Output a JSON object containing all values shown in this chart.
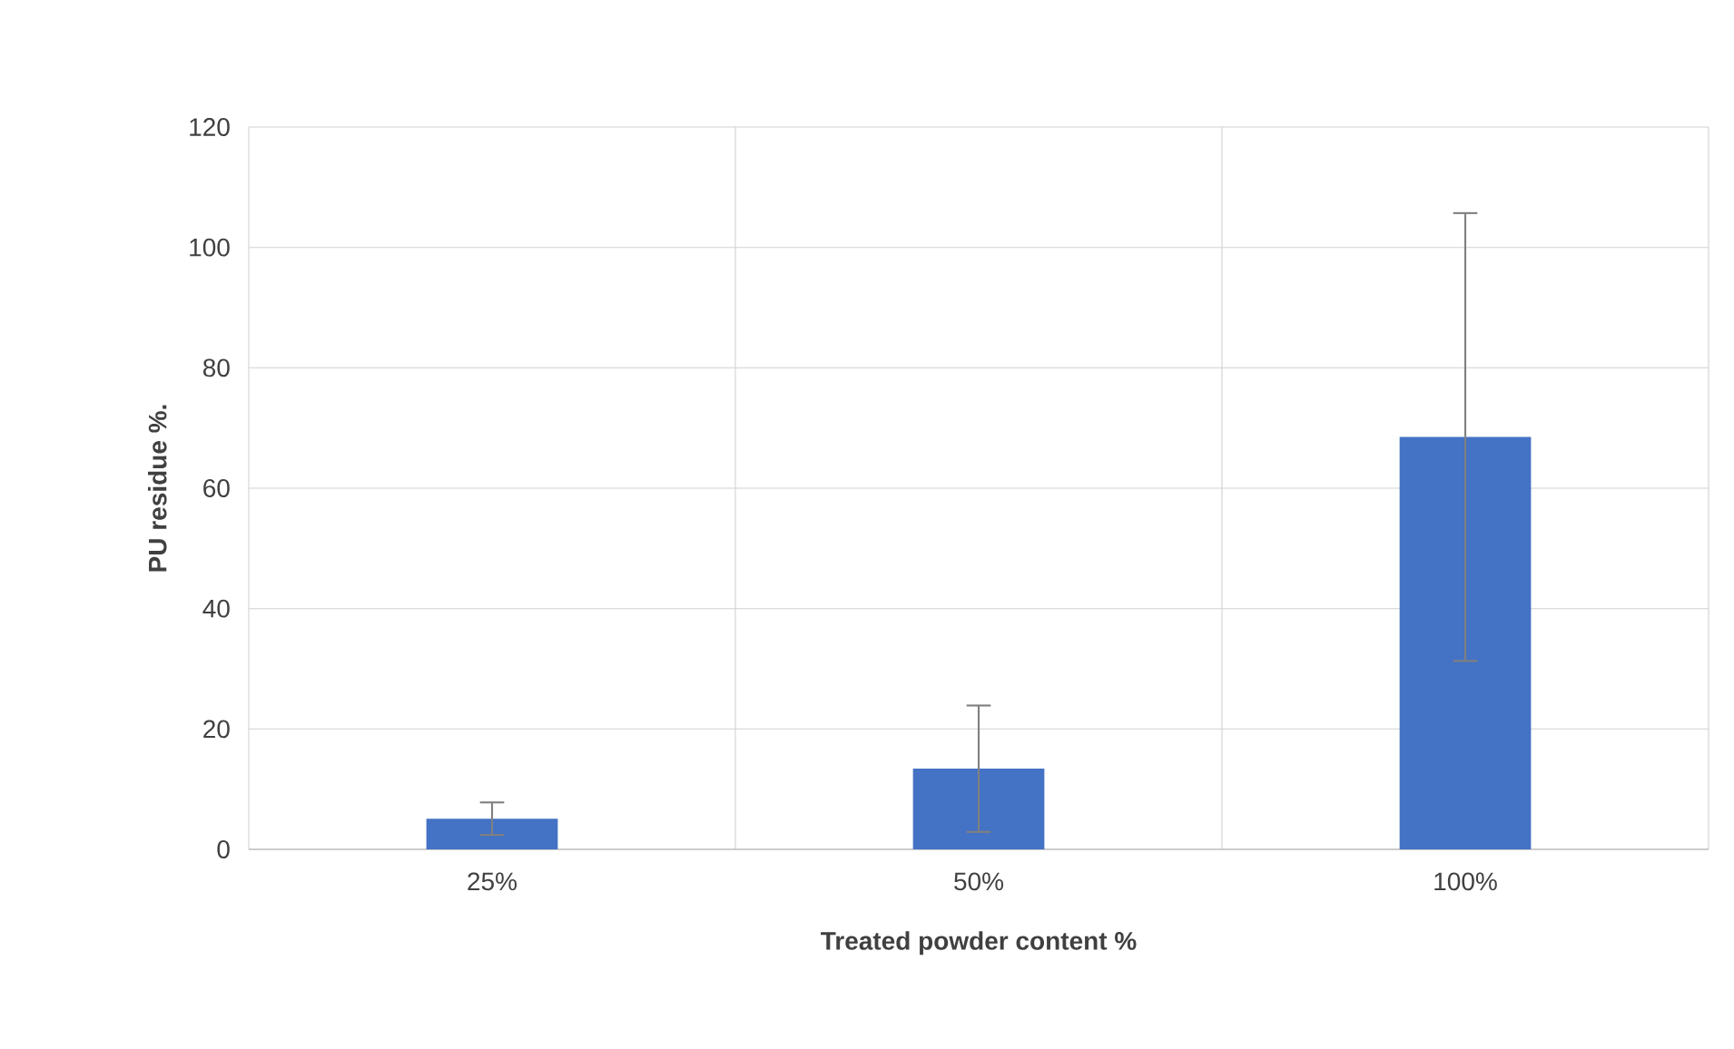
{
  "chart_data": {
    "type": "bar",
    "xlabel": "Treated powder content  %",
    "ylabel": "PU residue %.",
    "categories": [
      "25%",
      "50%",
      "100%"
    ],
    "values": [
      5.1,
      13.4,
      68.5
    ],
    "errors": [
      2.7,
      10.5,
      37.2
    ],
    "color": "#4472c4",
    "ylim": [
      0,
      120
    ],
    "yticks": [
      0,
      20,
      40,
      60,
      80,
      100,
      120
    ],
    "grid": true
  }
}
